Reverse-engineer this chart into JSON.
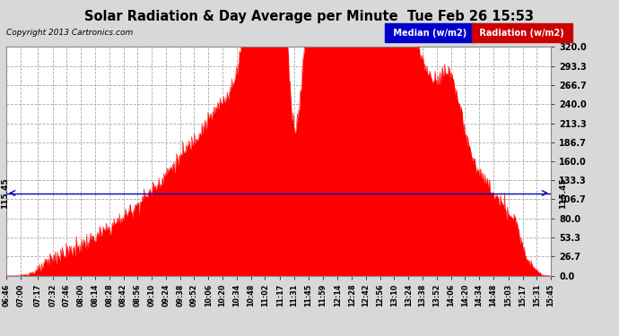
{
  "title": "Solar Radiation & Day Average per Minute  Tue Feb 26 15:53",
  "copyright": "Copyright 2013 Cartronics.com",
  "median_value": 115.45,
  "y_min": 0.0,
  "y_max": 320.0,
  "y_ticks": [
    0.0,
    26.7,
    53.3,
    80.0,
    106.7,
    133.3,
    160.0,
    186.7,
    213.3,
    240.0,
    266.7,
    293.3,
    320.0
  ],
  "background_color": "#d8d8d8",
  "plot_bg_color": "#ffffff",
  "fill_color": "#ff0000",
  "median_line_color": "#0000bb",
  "grid_color": "#aaaaaa",
  "title_color": "#000000",
  "legend_median_bg": "#0000cc",
  "legend_radiation_bg": "#cc0000",
  "x_labels": [
    "06:46",
    "07:00",
    "07:17",
    "07:32",
    "07:46",
    "08:00",
    "08:14",
    "08:28",
    "08:42",
    "08:56",
    "09:10",
    "09:24",
    "09:38",
    "09:52",
    "10:06",
    "10:20",
    "10:34",
    "10:48",
    "11:02",
    "11:17",
    "11:31",
    "11:45",
    "11:59",
    "12:14",
    "12:28",
    "12:42",
    "12:56",
    "13:10",
    "13:24",
    "13:38",
    "13:52",
    "14:06",
    "14:20",
    "14:34",
    "14:48",
    "15:03",
    "15:17",
    "15:31",
    "15:45"
  ],
  "num_points": 800
}
